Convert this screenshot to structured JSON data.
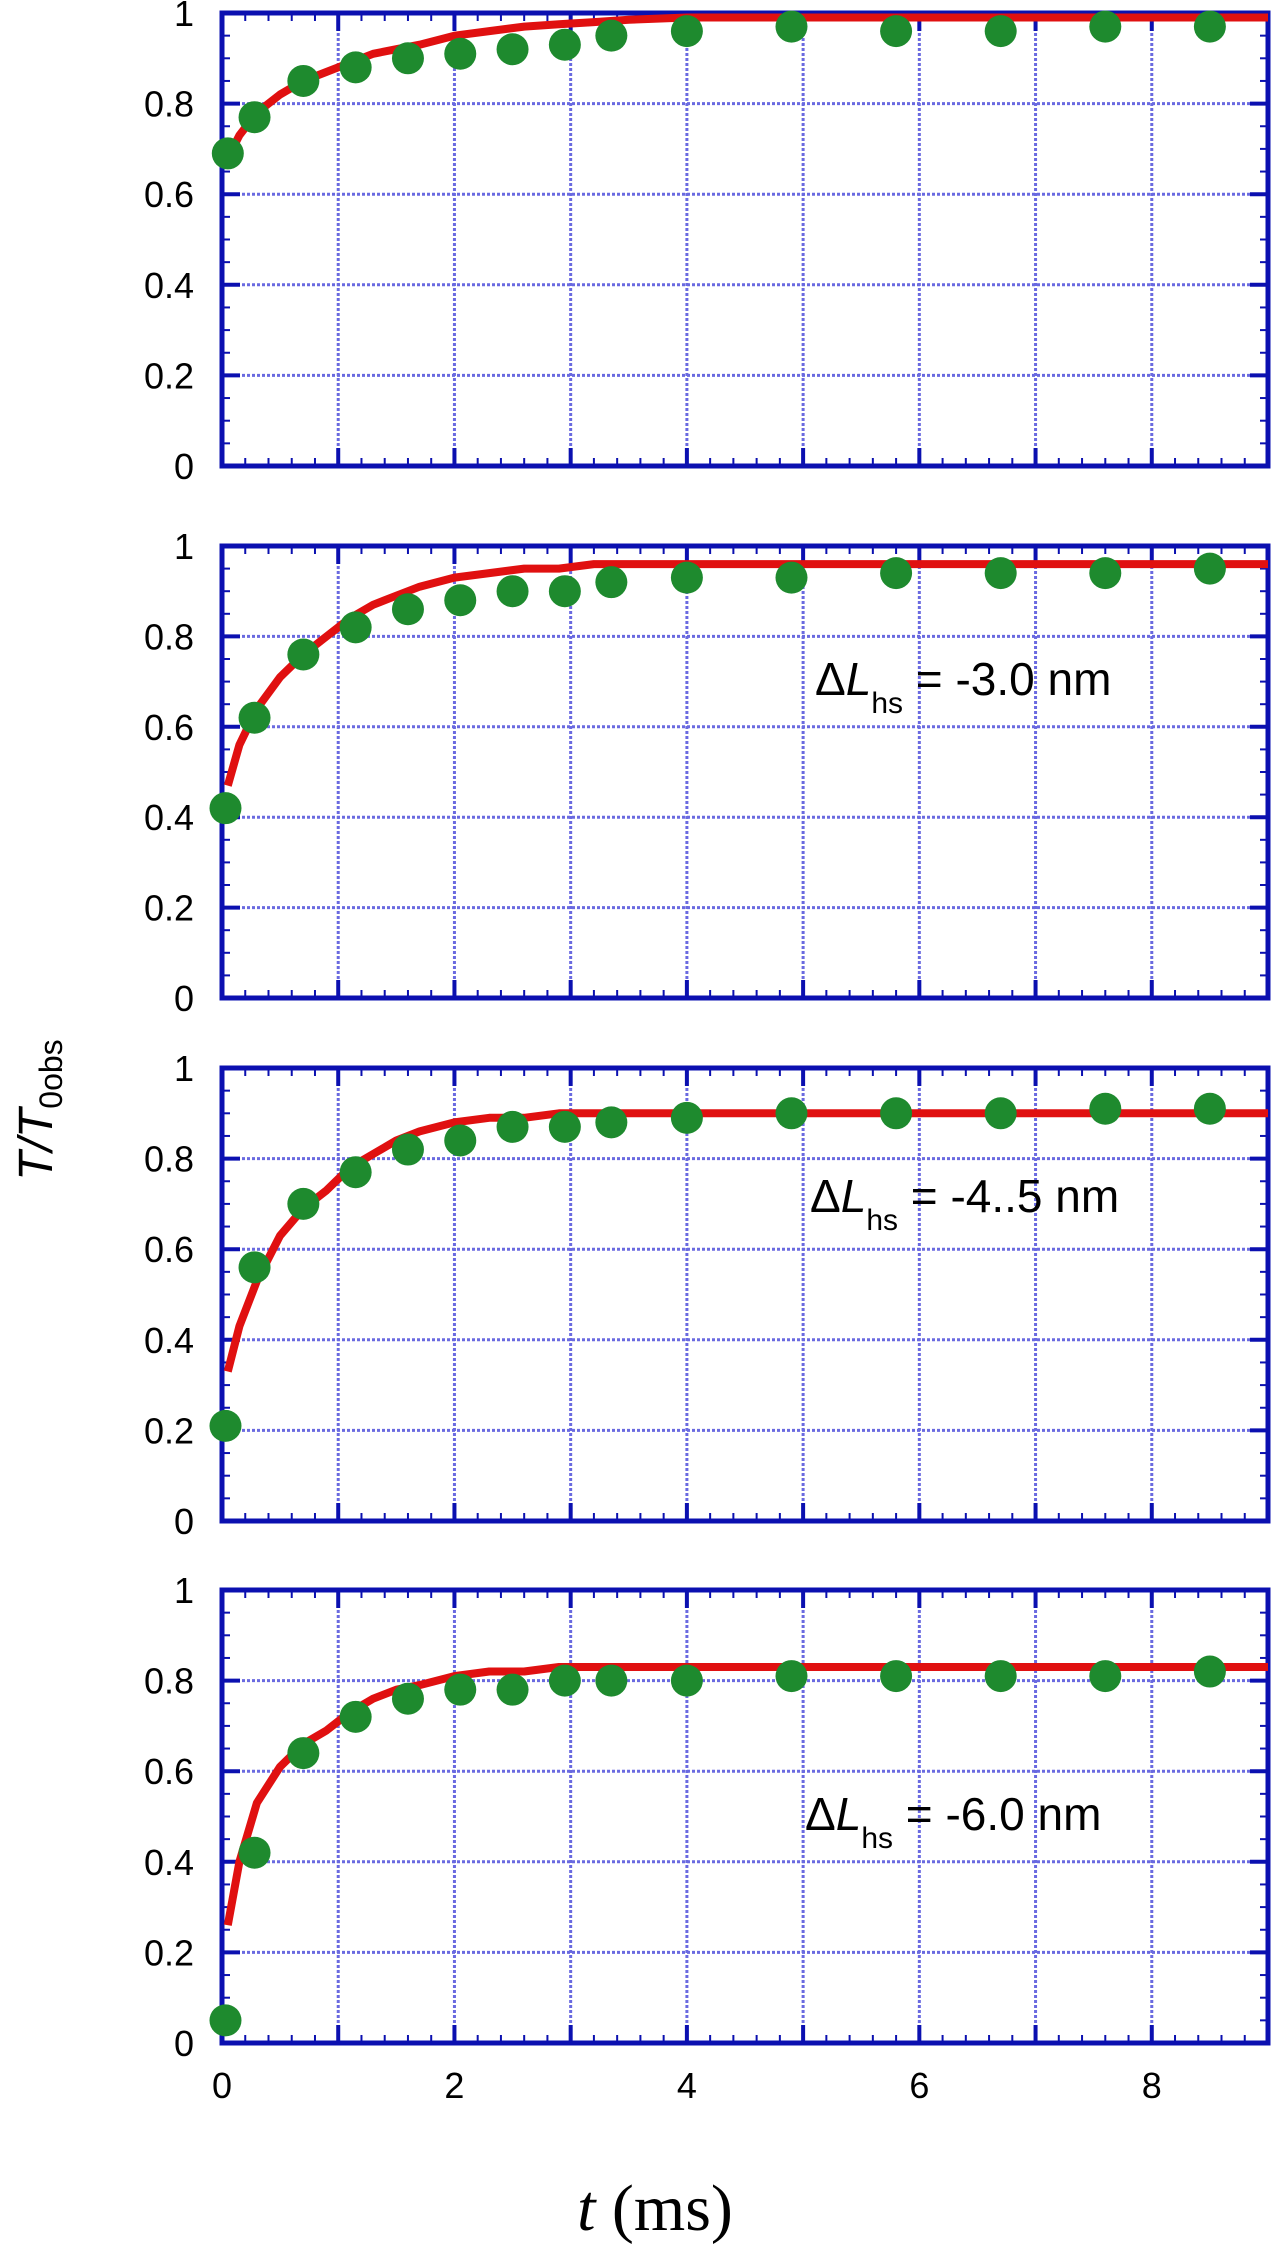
{
  "y_label": {
    "main": "T/T",
    "sub": "0obs"
  },
  "x_label": {
    "main": "t",
    "rest": " (ms)"
  },
  "chart_data": [
    {
      "type": "scatter",
      "panel": 1,
      "annotation": null,
      "xlim": [
        0,
        9
      ],
      "ylim": [
        0,
        1
      ],
      "x_ticks": [
        "0",
        "2",
        "4",
        "6",
        "8"
      ],
      "y_ticks": [
        "0",
        "0.2",
        "0.4",
        "0.6",
        "0.8",
        "1"
      ],
      "grid": true,
      "series": [
        {
          "kind": "points",
          "color": "#1e8a2e",
          "x": [
            0.05,
            0.28,
            0.7,
            1.15,
            1.6,
            2.05,
            2.5,
            2.95,
            3.35,
            4.0,
            4.9,
            5.8,
            6.7,
            7.6,
            8.5
          ],
          "y": [
            0.69,
            0.77,
            0.85,
            0.88,
            0.9,
            0.91,
            0.92,
            0.93,
            0.95,
            0.96,
            0.97,
            0.96,
            0.96,
            0.97,
            0.97
          ]
        },
        {
          "kind": "line",
          "color": "#e01010",
          "x": [
            0.05,
            0.15,
            0.3,
            0.5,
            0.7,
            0.9,
            1.1,
            1.3,
            1.5,
            1.7,
            2.0,
            2.3,
            2.6,
            2.9,
            3.2,
            3.5,
            4.0,
            5,
            6,
            7,
            8,
            9
          ],
          "y": [
            0.68,
            0.73,
            0.78,
            0.82,
            0.85,
            0.87,
            0.89,
            0.91,
            0.92,
            0.93,
            0.95,
            0.96,
            0.97,
            0.975,
            0.98,
            0.985,
            0.99,
            0.99,
            0.99,
            0.99,
            0.99,
            0.99
          ]
        }
      ]
    },
    {
      "type": "scatter",
      "panel": 2,
      "annotation": {
        "prefix": "ΔL",
        "sub": "hs",
        "suffix": " = -3.0 nm"
      },
      "xlim": [
        0,
        9
      ],
      "ylim": [
        0,
        1
      ],
      "x_ticks": [
        "0",
        "2",
        "4",
        "6",
        "8"
      ],
      "y_ticks": [
        "0",
        "0.2",
        "0.4",
        "0.6",
        "0.8",
        "1"
      ],
      "grid": true,
      "series": [
        {
          "kind": "points",
          "color": "#1e8a2e",
          "x": [
            0.03,
            0.28,
            0.7,
            1.15,
            1.6,
            2.05,
            2.5,
            2.95,
            3.35,
            4.0,
            4.9,
            5.8,
            6.7,
            7.6,
            8.5
          ],
          "y": [
            0.42,
            0.62,
            0.76,
            0.82,
            0.86,
            0.88,
            0.9,
            0.9,
            0.92,
            0.93,
            0.93,
            0.94,
            0.94,
            0.94,
            0.95
          ]
        },
        {
          "kind": "line",
          "color": "#e01010",
          "x": [
            0.05,
            0.15,
            0.3,
            0.5,
            0.7,
            0.9,
            1.1,
            1.3,
            1.5,
            1.7,
            2.0,
            2.3,
            2.6,
            2.9,
            3.2,
            3.5,
            4.0,
            5,
            6,
            7,
            8,
            9
          ],
          "y": [
            0.47,
            0.56,
            0.64,
            0.71,
            0.76,
            0.8,
            0.84,
            0.87,
            0.89,
            0.91,
            0.93,
            0.94,
            0.95,
            0.95,
            0.96,
            0.96,
            0.96,
            0.96,
            0.96,
            0.96,
            0.96,
            0.96
          ]
        }
      ]
    },
    {
      "type": "scatter",
      "panel": 3,
      "annotation": {
        "prefix": "ΔL",
        "sub": "hs",
        "suffix": " = -4..5 nm"
      },
      "xlim": [
        0,
        9
      ],
      "ylim": [
        0,
        1
      ],
      "x_ticks": [
        "0",
        "2",
        "4",
        "6",
        "8"
      ],
      "y_ticks": [
        "0",
        "0.2",
        "0.4",
        "0.6",
        "0.8",
        "1"
      ],
      "grid": true,
      "series": [
        {
          "kind": "points",
          "color": "#1e8a2e",
          "x": [
            0.03,
            0.28,
            0.7,
            1.15,
            1.6,
            2.05,
            2.5,
            2.95,
            3.35,
            4.0,
            4.9,
            5.8,
            6.7,
            7.6,
            8.5
          ],
          "y": [
            0.21,
            0.56,
            0.7,
            0.77,
            0.82,
            0.84,
            0.87,
            0.87,
            0.88,
            0.89,
            0.9,
            0.9,
            0.9,
            0.91,
            0.91
          ]
        },
        {
          "kind": "line",
          "color": "#e01010",
          "x": [
            0.05,
            0.15,
            0.3,
            0.5,
            0.7,
            0.9,
            1.1,
            1.3,
            1.5,
            1.7,
            2.0,
            2.3,
            2.6,
            2.9,
            3.2,
            3.5,
            4.0,
            5,
            6,
            7,
            8,
            9
          ],
          "y": [
            0.33,
            0.43,
            0.53,
            0.63,
            0.69,
            0.73,
            0.78,
            0.81,
            0.84,
            0.86,
            0.88,
            0.89,
            0.89,
            0.9,
            0.9,
            0.9,
            0.9,
            0.9,
            0.9,
            0.9,
            0.9,
            0.9
          ]
        }
      ]
    },
    {
      "type": "scatter",
      "panel": 4,
      "annotation": {
        "prefix": "ΔL",
        "sub": "hs",
        "suffix": " = -6.0 nm"
      },
      "xlim": [
        0,
        9
      ],
      "ylim": [
        0,
        1
      ],
      "x_ticks": [
        "0",
        "2",
        "4",
        "6",
        "8"
      ],
      "y_ticks": [
        "0",
        "0.2",
        "0.4",
        "0.6",
        "0.8",
        "1"
      ],
      "grid": true,
      "series": [
        {
          "kind": "points",
          "color": "#1e8a2e",
          "x": [
            0.03,
            0.28,
            0.7,
            1.15,
            1.6,
            2.05,
            2.5,
            2.95,
            3.35,
            4.0,
            4.9,
            5.8,
            6.7,
            7.6,
            8.5
          ],
          "y": [
            0.05,
            0.42,
            0.64,
            0.72,
            0.76,
            0.78,
            0.78,
            0.8,
            0.8,
            0.8,
            0.81,
            0.81,
            0.81,
            0.81,
            0.82
          ]
        },
        {
          "kind": "line",
          "color": "#e01010",
          "x": [
            0.05,
            0.15,
            0.3,
            0.5,
            0.7,
            0.9,
            1.1,
            1.3,
            1.5,
            1.7,
            2.0,
            2.3,
            2.6,
            2.9,
            3.2,
            3.5,
            4.0,
            5,
            6,
            7,
            8,
            9
          ],
          "y": [
            0.26,
            0.4,
            0.53,
            0.61,
            0.66,
            0.69,
            0.73,
            0.76,
            0.78,
            0.79,
            0.81,
            0.82,
            0.82,
            0.83,
            0.83,
            0.83,
            0.83,
            0.83,
            0.83,
            0.83,
            0.83,
            0.83
          ]
        }
      ]
    }
  ],
  "colors": {
    "axis": "#0b10b0",
    "grid": "#6a6ae0",
    "text": "#000000"
  }
}
